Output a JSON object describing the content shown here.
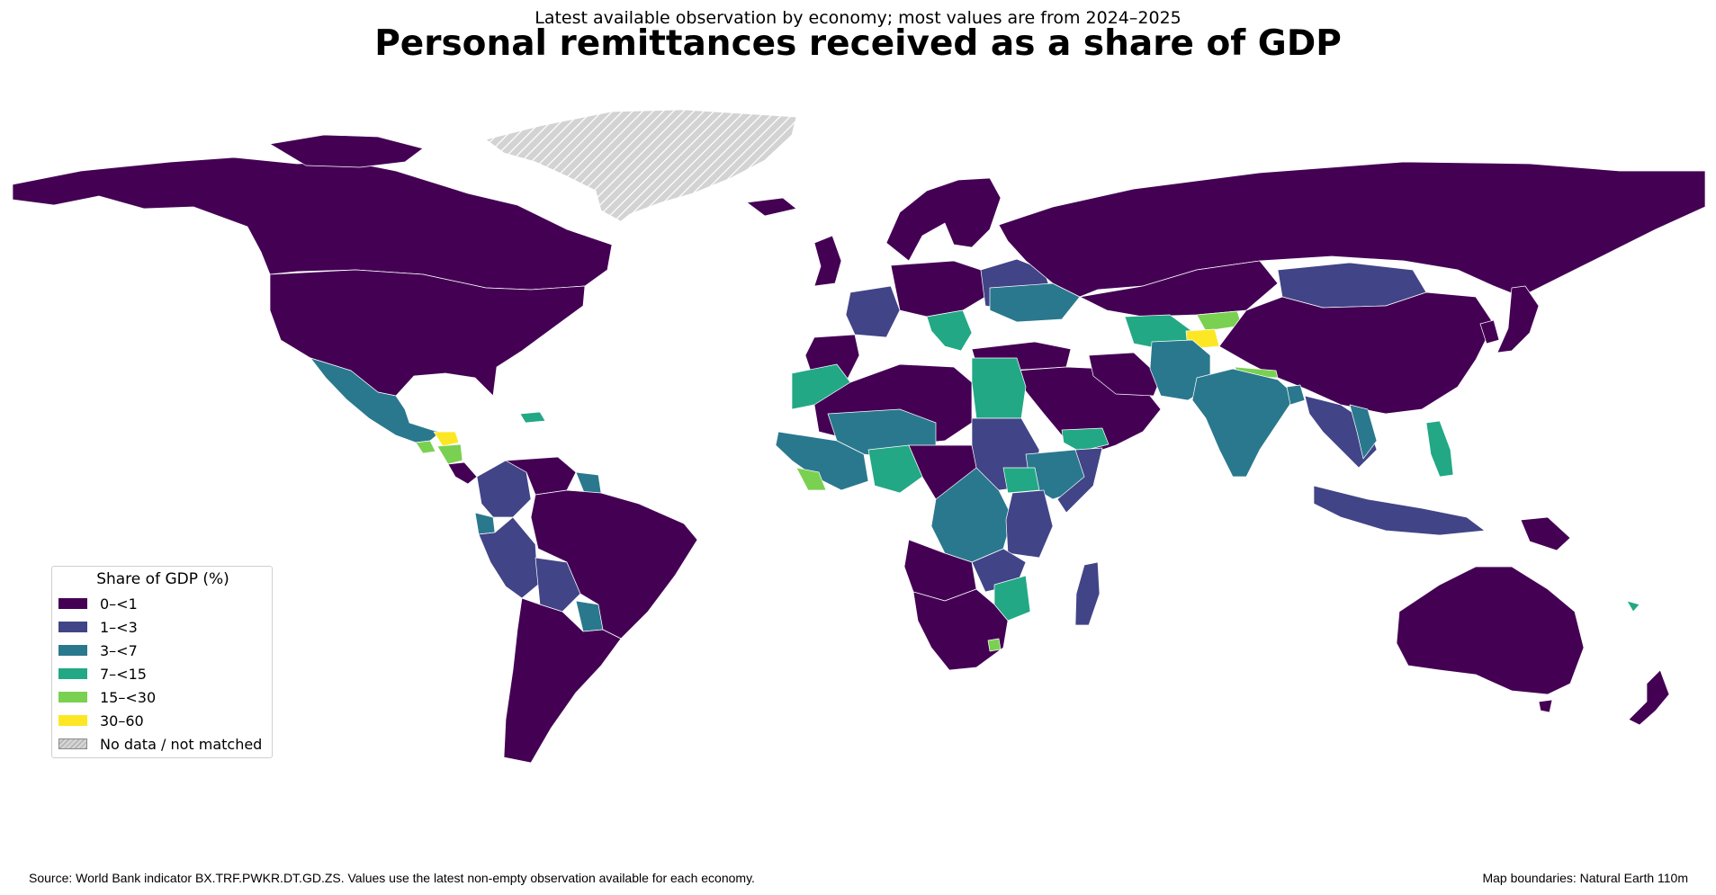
{
  "header": {
    "subtitle": "Latest available observation by economy; most values are from 2024–2025",
    "title": "Personal remittances received as a share of GDP"
  },
  "legend": {
    "title": "Share of GDP (%)",
    "items": [
      {
        "label": "0–<1",
        "color": "#440154"
      },
      {
        "label": "1–<3",
        "color": "#414487"
      },
      {
        "label": "3–<7",
        "color": "#2a788e"
      },
      {
        "label": "7–<15",
        "color": "#22a884"
      },
      {
        "label": "15–<30",
        "color": "#7ad151"
      },
      {
        "label": "30–60",
        "color": "#fde725"
      },
      {
        "label": "No data / not matched",
        "color": "#d3d3d3"
      }
    ]
  },
  "footer": {
    "source": "Source: World Bank indicator BX.TRF.PWKR.DT.GD.ZS. Values use the latest non-empty observation available for each economy.",
    "boundaries": "Map boundaries: Natural Earth 110m"
  }
}
